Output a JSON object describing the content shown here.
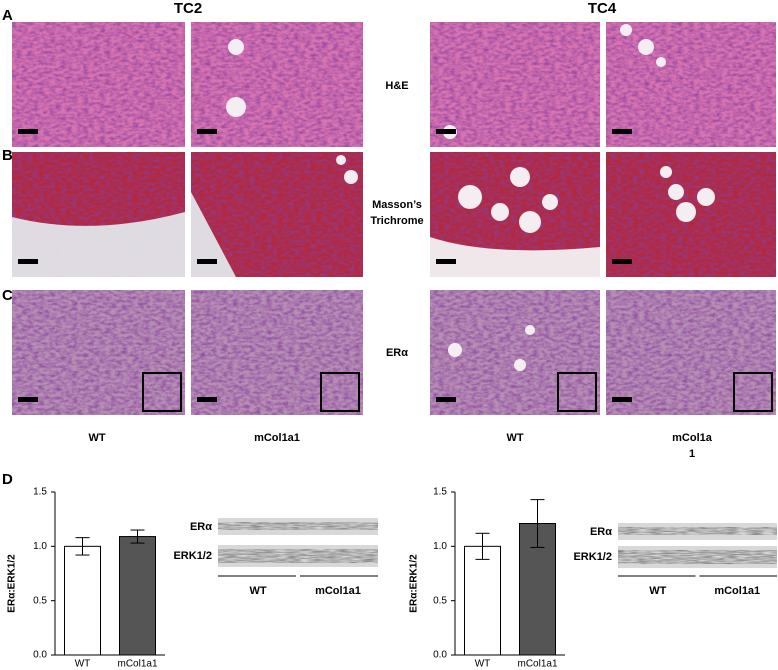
{
  "figure": {
    "panels": [
      "A",
      "B",
      "C",
      "D"
    ],
    "columns": [
      "TC2",
      "TC4"
    ],
    "stains": {
      "he": "H&E",
      "masson": [
        "Masson’s",
        "Trichrome"
      ],
      "er": "ERα"
    },
    "genotypes": [
      "WT",
      "mCol1a1",
      "WT",
      [
        "mCol1a",
        "1"
      ]
    ]
  },
  "chart_data": [
    {
      "type": "bar",
      "ylabel": "ERα:ERK1/2",
      "categories": [
        "WT",
        "mCol1a1"
      ],
      "values": [
        1.0,
        1.09
      ],
      "errors": [
        0.08,
        0.06
      ],
      "colors": [
        "#ffffff",
        "#555555"
      ],
      "ylim": [
        0,
        1.5
      ],
      "yticks": [
        {
          "value": 0,
          "label": "0.0"
        },
        0.5,
        {
          "value": 1,
          "label": "1.0"
        },
        1.5
      ],
      "blot": {
        "bands": [
          "ERα",
          "ERK1/2"
        ],
        "groups": [
          "WT",
          "mCol1a1"
        ]
      }
    },
    {
      "type": "bar",
      "ylabel": "ERα:ERK1/2",
      "categories": [
        "WT",
        "mCol1a1"
      ],
      "values": [
        1.0,
        1.21
      ],
      "errors": [
        0.12,
        0.22
      ],
      "colors": [
        "#ffffff",
        "#555555"
      ],
      "ylim": [
        0,
        1.5
      ],
      "yticks": [
        {
          "value": 0,
          "label": "0.0"
        },
        0.5,
        {
          "value": 1,
          "label": "1.0"
        },
        1.5
      ],
      "blot": {
        "bands": [
          "ERα",
          "ERK1/2"
        ],
        "groups": [
          "WT",
          "mCol1a1"
        ]
      }
    }
  ]
}
